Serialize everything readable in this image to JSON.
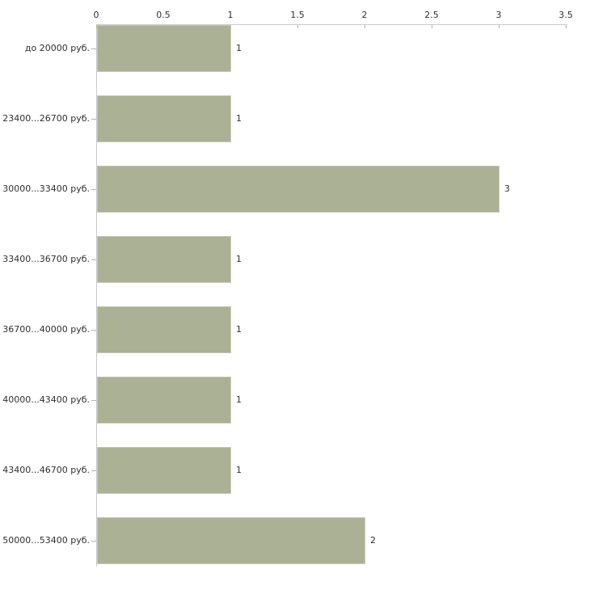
{
  "colors": {
    "background": "#ffffff",
    "bar-fill": "#abb194",
    "bar-border": "#c5c8b6",
    "axis-line": "#c9c9c9",
    "tick-mark": "#b5b78e",
    "text": "#303030"
  },
  "chart_data": {
    "type": "bar",
    "orientation": "horizontal",
    "title": "",
    "xlabel": "",
    "ylabel": "",
    "categories": [
      "до 20000 руб.",
      "23400...26700 руб.",
      "30000...33400 руб.",
      "33400...36700 руб.",
      "36700...40000 руб.",
      "40000...43400 руб.",
      "43400...46700 руб.",
      "50000...53400 руб."
    ],
    "values": [
      1,
      1,
      3,
      1,
      1,
      1,
      1,
      2
    ],
    "value_labels": [
      "1",
      "1",
      "3",
      "1",
      "1",
      "1",
      "1",
      "2"
    ],
    "x_tick_labels": [
      "0",
      "0.5",
      "1",
      "1.5",
      "2",
      "2.5",
      "3",
      "3.5"
    ],
    "xlim": [
      0,
      3.5
    ],
    "axis_position": "top",
    "grid": false,
    "legend": false
  }
}
